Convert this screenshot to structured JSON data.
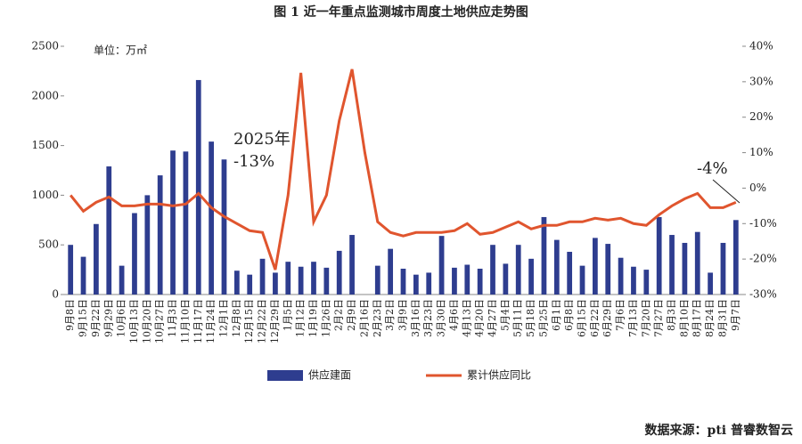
{
  "chart_data": {
    "type": "bar-line",
    "title": "图 1  近一年重点监测城市周度土地供应走势图",
    "unit_label": "单位：万㎡",
    "source": "数据来源：pti 普睿数智云",
    "annotations": [
      "2025年",
      "-13%",
      "-4%"
    ],
    "categories": [
      "9月8日",
      "9月15日",
      "9月22日",
      "9月29日",
      "10月6日",
      "10月13日",
      "10月20日",
      "10月27日",
      "11月3日",
      "11月10日",
      "11月17日",
      "11月24日",
      "12月1日",
      "12月8日",
      "12月15日",
      "12月22日",
      "12月29日",
      "1月5日",
      "1月12日",
      "1月19日",
      "1月26日",
      "2月2日",
      "2月9日",
      "2月16日",
      "2月23日",
      "3月2日",
      "3月9日",
      "3月16日",
      "3月23日",
      "3月30日",
      "4月6日",
      "4月13日",
      "4月20日",
      "4月27日",
      "5月4日",
      "5月11日",
      "5月18日",
      "5月25日",
      "6月1日",
      "6月8日",
      "6月15日",
      "6月22日",
      "6月29日",
      "7月6日",
      "7月13日",
      "7月20日",
      "7月27日",
      "8月3日",
      "8月10日",
      "8月17日",
      "8月24日",
      "8月31日",
      "9月7日"
    ],
    "series": [
      {
        "name": "供应建面",
        "kind": "bar",
        "color": "#2e3d8f",
        "values": [
          500,
          380,
          710,
          1290,
          290,
          820,
          1000,
          1200,
          1450,
          1440,
          2160,
          1540,
          1360,
          240,
          200,
          360,
          220,
          330,
          280,
          330,
          270,
          440,
          600,
          0,
          290,
          460,
          260,
          200,
          220,
          590,
          270,
          300,
          260,
          500,
          310,
          500,
          360,
          780,
          550,
          430,
          290,
          570,
          510,
          370,
          280,
          250,
          780,
          600,
          520,
          630,
          220,
          520,
          750
        ]
      },
      {
        "name": "累计供应同比",
        "kind": "line",
        "axis": "y2",
        "color": "#e0552e",
        "values": [
          -2,
          -6.5,
          -4,
          -2.5,
          -5,
          -5,
          -4.5,
          -4.5,
          -5,
          -4.5,
          -1.5,
          -5.5,
          -8,
          -10,
          -12,
          -12.5,
          -23,
          -2,
          32.5,
          -9.5,
          -2,
          19,
          33.5,
          10,
          -9.5,
          -12.5,
          -13.5,
          -12.5,
          -12.5,
          -12.5,
          -12,
          -10,
          -13,
          -12.5,
          -11,
          -9.5,
          -11.5,
          -10.5,
          -10.5,
          -9.5,
          -9.5,
          -8.5,
          -9,
          -8.5,
          -10,
          -10.5,
          -7.5,
          -5,
          -3,
          -1.5,
          -5.5,
          -5.5,
          -4
        ]
      }
    ],
    "ylim": [
      0,
      2500
    ],
    "yticks": [
      0,
      500,
      1000,
      1500,
      2000,
      2500
    ],
    "y2lim": [
      -30,
      40
    ],
    "y2ticks": [
      {
        "value": -30,
        "label": "-30%"
      },
      {
        "value": -20,
        "label": "-20%"
      },
      {
        "value": -10,
        "label": "-10%"
      },
      {
        "value": 0,
        "label": "0%"
      },
      {
        "value": 10,
        "label": "10%"
      },
      {
        "value": 20,
        "label": "20%"
      },
      {
        "value": 30,
        "label": "30%"
      },
      {
        "value": 40,
        "label": "40%"
      }
    ]
  }
}
